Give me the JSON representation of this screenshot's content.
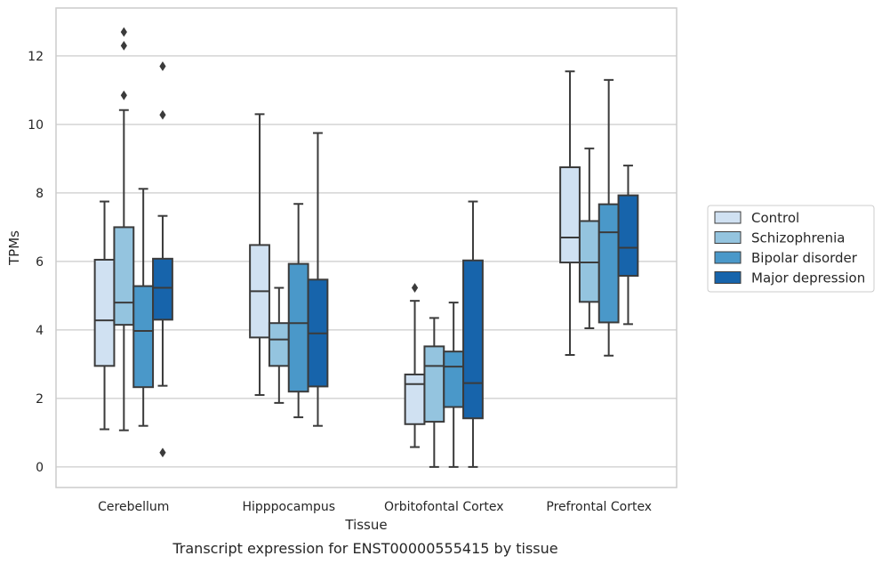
{
  "chart_data": {
    "type": "boxplot",
    "caption": "Transcript expression for ENST00000555415 by tissue",
    "xlabel": "Tissue",
    "ylabel": "TPMs",
    "ylim": [
      -0.6,
      13.4
    ],
    "yticks": [
      0,
      2,
      4,
      6,
      8,
      10,
      12
    ],
    "grid": "horizontal",
    "legend_position": "right",
    "categories": [
      "Cerebellum",
      "Hipppocampus",
      "Orbitofontal Cortex",
      "Prefrontal Cortex"
    ],
    "series": [
      {
        "name": "Control",
        "color": "#d0e1f2",
        "boxes": [
          {
            "low": 1.1,
            "q1": 2.95,
            "median": 4.28,
            "q3": 6.05,
            "high": 7.75,
            "outliers": []
          },
          {
            "low": 2.1,
            "q1": 3.78,
            "median": 5.13,
            "q3": 6.48,
            "high": 10.3,
            "outliers": []
          },
          {
            "low": 0.58,
            "q1": 1.25,
            "median": 2.42,
            "q3": 2.7,
            "high": 4.85,
            "outliers": [
              5.23
            ]
          },
          {
            "low": 3.27,
            "q1": 5.97,
            "median": 6.7,
            "q3": 8.75,
            "high": 11.55,
            "outliers": []
          }
        ]
      },
      {
        "name": "Schizophrenia",
        "color": "#94c4df",
        "boxes": [
          {
            "low": 1.07,
            "q1": 4.15,
            "median": 4.8,
            "q3": 7.0,
            "high": 10.42,
            "outliers": [
              10.85,
              12.3,
              12.7
            ]
          },
          {
            "low": 1.87,
            "q1": 2.95,
            "median": 3.72,
            "q3": 4.2,
            "high": 5.23,
            "outliers": []
          },
          {
            "low": 0.0,
            "q1": 1.32,
            "median": 2.95,
            "q3": 3.52,
            "high": 4.35,
            "outliers": []
          },
          {
            "low": 4.05,
            "q1": 4.82,
            "median": 5.97,
            "q3": 7.18,
            "high": 9.3,
            "outliers": []
          }
        ]
      },
      {
        "name": "Bipolar disorder",
        "color": "#4a98c9",
        "boxes": [
          {
            "low": 1.2,
            "q1": 2.33,
            "median": 3.97,
            "q3": 5.28,
            "high": 8.12,
            "outliers": []
          },
          {
            "low": 1.45,
            "q1": 2.2,
            "median": 4.2,
            "q3": 5.93,
            "high": 7.68,
            "outliers": []
          },
          {
            "low": 0.0,
            "q1": 1.75,
            "median": 2.93,
            "q3": 3.37,
            "high": 4.8,
            "outliers": []
          },
          {
            "low": 3.25,
            "q1": 4.22,
            "median": 6.85,
            "q3": 7.67,
            "high": 11.3,
            "outliers": []
          }
        ]
      },
      {
        "name": "Major depression",
        "color": "#1764ab",
        "boxes": [
          {
            "low": 2.37,
            "q1": 4.3,
            "median": 5.23,
            "q3": 6.08,
            "high": 7.33,
            "outliers": [
              0.42,
              10.28,
              11.7
            ]
          },
          {
            "low": 1.2,
            "q1": 2.35,
            "median": 3.9,
            "q3": 5.47,
            "high": 9.75,
            "outliers": []
          },
          {
            "low": 0.0,
            "q1": 1.42,
            "median": 2.45,
            "q3": 6.03,
            "high": 7.75,
            "outliers": []
          },
          {
            "low": 4.17,
            "q1": 5.58,
            "median": 6.4,
            "q3": 7.93,
            "high": 8.8,
            "outliers": []
          }
        ]
      }
    ]
  }
}
